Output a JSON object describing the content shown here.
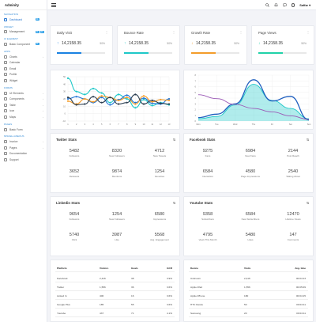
{
  "app": {
    "brand": "Adminity",
    "user": "Saffar"
  },
  "sidebar": {
    "sections": [
      {
        "label": "Navigation",
        "items": [
          {
            "label": "Dashboard",
            "badge": "11",
            "active": true
          }
        ]
      },
      {
        "label": "Widget",
        "items": [
          {
            "label": "Management",
            "badge": "11",
            "badge2": "11"
          }
        ]
      },
      {
        "label": "UI Element",
        "items": [
          {
            "label": "Basic Component",
            "badge": "11"
          }
        ]
      },
      {
        "label": "Apps",
        "items": [
          {
            "label": "Charts",
            "caret": true
          },
          {
            "label": "Calendar"
          },
          {
            "label": "Email"
          },
          {
            "label": "Profile"
          },
          {
            "label": "Widget"
          }
        ]
      },
      {
        "label": "Forms",
        "items": [
          {
            "label": "UI Elements",
            "caret": true
          },
          {
            "label": "Components",
            "caret": true
          },
          {
            "label": "Table",
            "caret": true
          },
          {
            "label": "Icon",
            "caret": true
          },
          {
            "label": "Maps",
            "caret": true
          }
        ]
      },
      {
        "label": "Pages",
        "items": [
          {
            "label": "Basic Form"
          }
        ]
      },
      {
        "label": "Miscellaneous",
        "items": [
          {
            "label": "Invoice",
            "caret": true
          },
          {
            "label": "Pages",
            "caret": true
          },
          {
            "label": "Documentation"
          },
          {
            "label": "Support"
          }
        ]
      }
    ]
  },
  "kpis": [
    {
      "title": "Daily Visit",
      "value": "14,2158.35",
      "percent": "50%",
      "color": "#1a82e2",
      "progress": 0.5,
      "arrow": "up"
    },
    {
      "title": "Bounce Rate",
      "value": "14,2158.35",
      "percent": "50%",
      "color": "#1ec8c8",
      "progress": 0.5,
      "arrow": "up"
    },
    {
      "title": "Growth Rate",
      "value": "14,2158.35",
      "percent": "50%",
      "color": "#f39c2a",
      "progress": 0.5,
      "arrow": "down"
    },
    {
      "title": "Page Views",
      "value": "14,2158.35",
      "percent": "50%",
      "color": "#20d1a8",
      "progress": 0.5,
      "arrow": "down"
    }
  ],
  "chart_data": [
    {
      "type": "line",
      "x": [
        "1",
        "2",
        "3",
        "4",
        "5",
        "6",
        "7",
        "8",
        "9",
        "10",
        "11",
        "12",
        "13"
      ],
      "ylim": [
        -10,
        50
      ],
      "yticks": [
        "50",
        "40",
        "30",
        "20",
        "10",
        "0",
        "-10"
      ],
      "series": [
        {
          "color": "#1ec8c8",
          "values": [
            48,
            30,
            26,
            34,
            28,
            15,
            26,
            20,
            8,
            19,
            11,
            15,
            12
          ]
        },
        {
          "color": "#2477d6",
          "values": [
            20,
            23,
            20,
            15,
            22,
            12,
            19,
            25,
            15,
            21,
            14,
            13,
            20
          ]
        },
        {
          "color": "#f39c2a",
          "values": [
            17,
            13,
            20,
            16,
            24,
            22,
            18,
            22,
            13,
            24,
            16,
            19,
            18
          ]
        },
        {
          "color": "#2c3e50",
          "values": [
            22,
            12,
            13,
            23,
            15,
            22,
            13,
            15,
            26,
            13,
            18,
            14,
            13
          ]
        }
      ]
    },
    {
      "type": "area",
      "x": [
        "Mon",
        "Tue",
        "Wed",
        "Thu",
        "Fri",
        "Sat",
        "Sun"
      ],
      "ylim": [
        0,
        8
      ],
      "yticks": [
        "8",
        "7",
        "6",
        "5",
        "4",
        "3",
        "2",
        "1",
        "0"
      ],
      "series": [
        {
          "color": "#1ec8c8",
          "values": [
            0.4,
            0.8,
            2.8,
            6.4,
            3.6,
            2.2,
            0.4
          ]
        },
        {
          "color": "#1f5fbf",
          "values": [
            0.6,
            1.2,
            3.0,
            7.2,
            3.5,
            4.3,
            0.2
          ]
        },
        {
          "color": "#9b59b6",
          "values": [
            4.6,
            3.9,
            2.9,
            2.2,
            1.6,
            0.9,
            0.3
          ]
        }
      ]
    }
  ],
  "twitter": {
    "title": "Twitter Stats",
    "icon": "⇅",
    "stats": [
      {
        "n": "5482",
        "l": "Followers"
      },
      {
        "n": "8320",
        "l": "New Followers"
      },
      {
        "n": "4712",
        "l": "New Tweets"
      },
      {
        "n": "3652",
        "l": "Retweets"
      },
      {
        "n": "9874",
        "l": "Mentions"
      },
      {
        "n": "1254",
        "l": "Favorites"
      }
    ]
  },
  "facebook": {
    "title": "Facebook Stats",
    "icon": "⇅",
    "stats": [
      {
        "n": "9275",
        "l": "Fans"
      },
      {
        "n": "6984",
        "l": "New Fans"
      },
      {
        "n": "2144",
        "l": "Post Reach"
      },
      {
        "n": "6584",
        "l": "Interaction"
      },
      {
        "n": "4580",
        "l": "Page Impressions"
      },
      {
        "n": "2540",
        "l": "Talking About"
      }
    ]
  },
  "linkedin": {
    "title": "Linkedin Stats",
    "icon": "⇅",
    "stats": [
      {
        "n": "9654",
        "l": "Followers"
      },
      {
        "n": "1254",
        "l": "New Followers"
      },
      {
        "n": "6580",
        "l": "Impressions"
      },
      {
        "n": "5740",
        "l": "Click"
      },
      {
        "n": "3987",
        "l": "Like"
      },
      {
        "n": "5568",
        "l": "Avg. Engagement"
      }
    ]
  },
  "youtube": {
    "title": "Youtube Stats",
    "icon": "⇅",
    "stats": [
      {
        "n": "9358",
        "l": "Subscribers"
      },
      {
        "n": "6584",
        "l": "New Subscribers"
      },
      {
        "n": "12470",
        "l": "Lifetime Views"
      },
      {
        "n": "4795",
        "l": "Vews This Month"
      },
      {
        "n": "5480",
        "l": "Likes"
      },
      {
        "n": "147",
        "l": "Comments"
      }
    ]
  },
  "table_platform": {
    "headers": [
      "Platform",
      "Visitors",
      "Goals",
      "GCR"
    ],
    "rows": [
      [
        "Facebook",
        "2,416",
        "38",
        "3.9%"
      ],
      [
        "Twitter",
        "1,556",
        "36",
        "3.6%"
      ],
      [
        "Linked In",
        "400",
        "16",
        "3.6%"
      ],
      [
        "Google Plus",
        "185",
        "55",
        "3.6%"
      ],
      [
        "Youtube",
        "437",
        "71",
        "4.1%"
      ]
    ]
  },
  "table_device": {
    "headers": [
      "Device",
      "Visits",
      "Avg. time"
    ],
    "rows": [
      [
        "Unknown",
        "2,416",
        "00:04:13"
      ],
      [
        "Apple iPad",
        "1,556",
        "00:05:09"
      ],
      [
        "Apple iPhone",
        "180",
        "00:04:15"
      ],
      [
        "HTC Desire",
        "50",
        "00:04:11"
      ],
      [
        "Samsung",
        "20",
        "00:04:11"
      ]
    ]
  }
}
